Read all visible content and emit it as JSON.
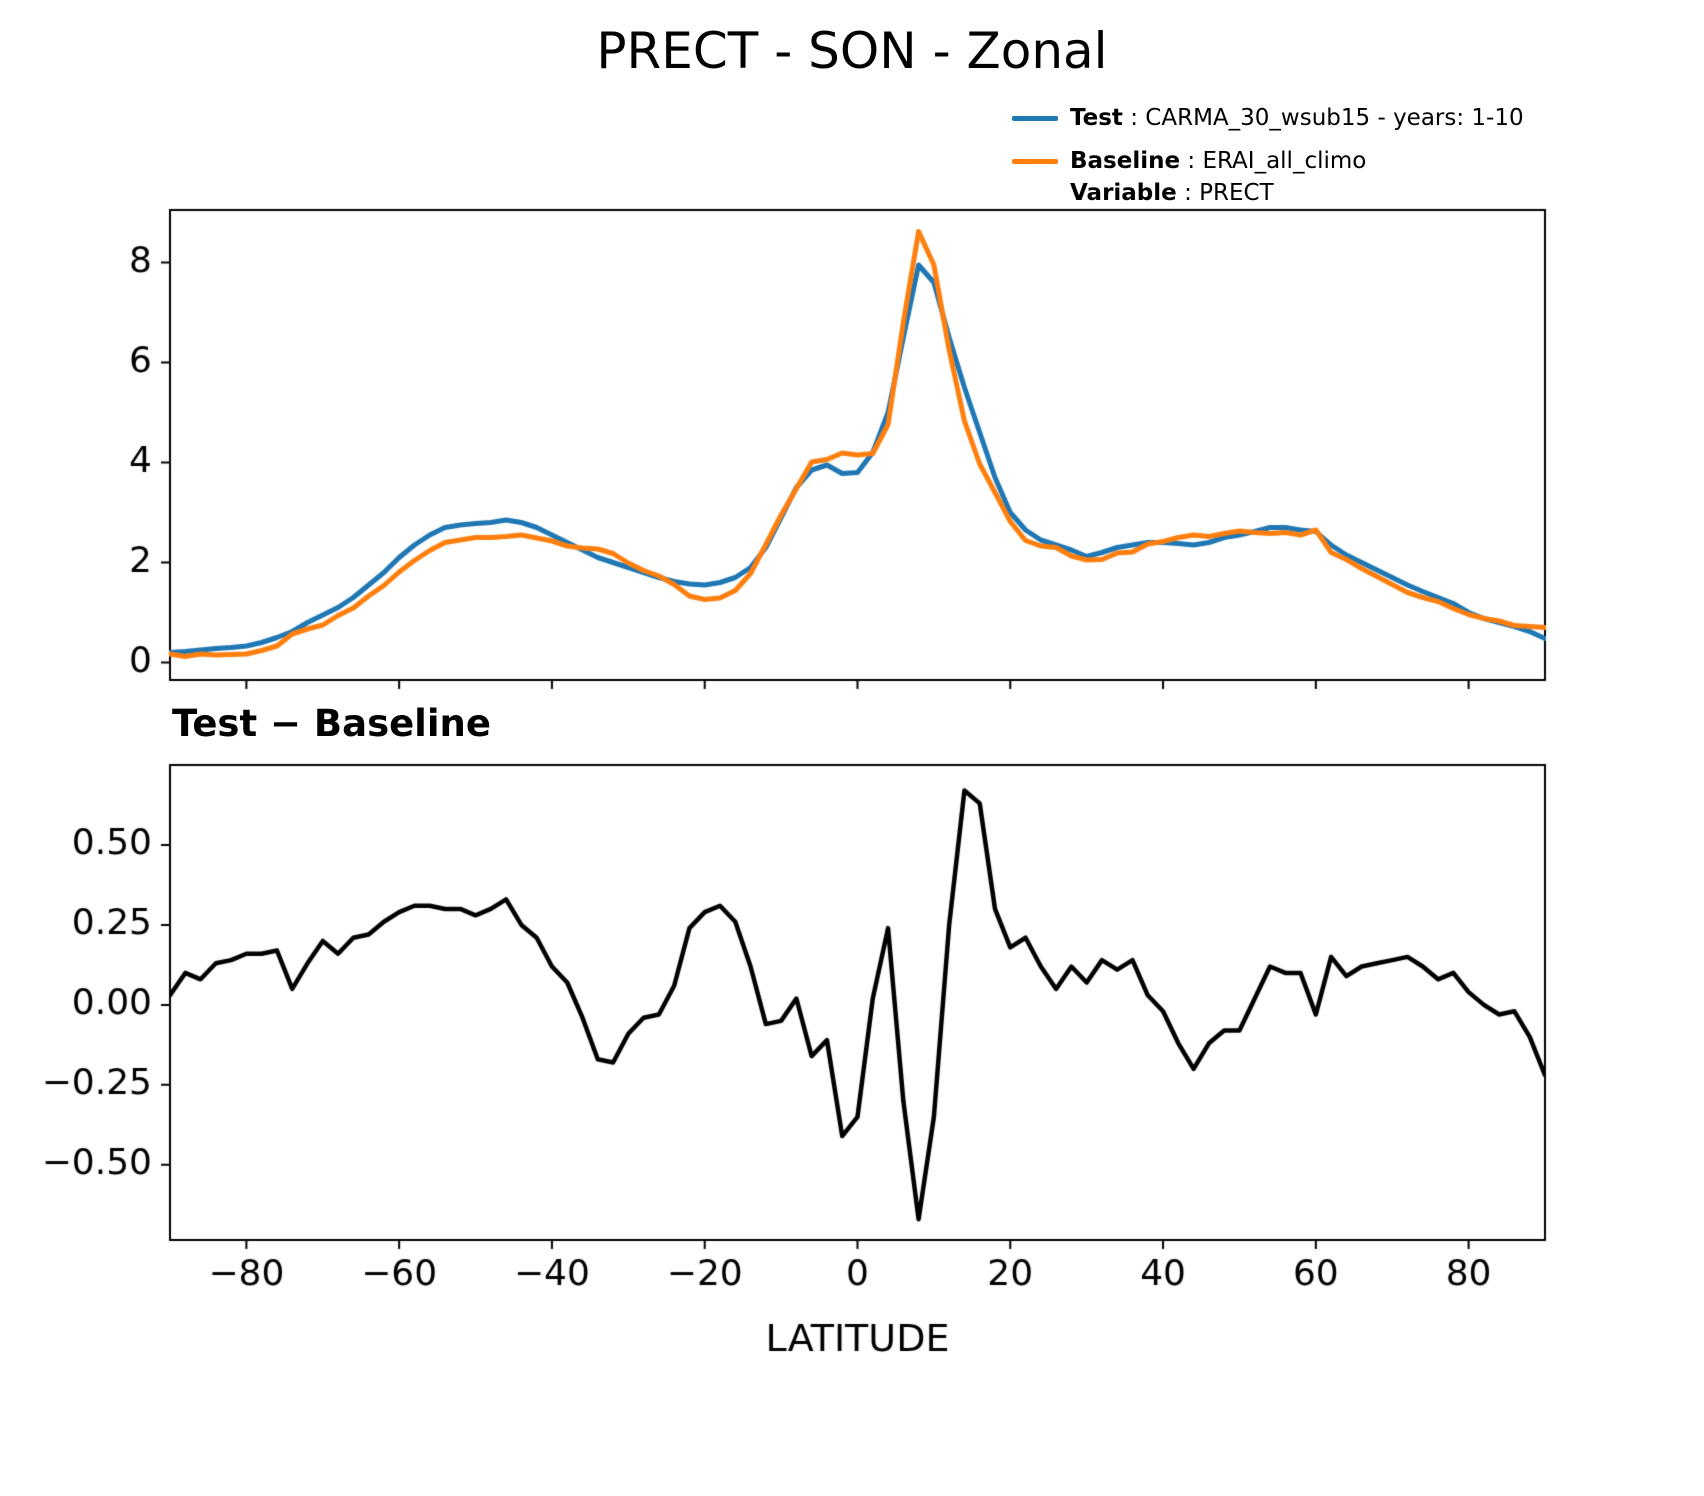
{
  "title": "PRECT - SON - Zonal",
  "colors": {
    "test": "#1f77b4",
    "baseline": "#ff7f0e",
    "diff": "#000000",
    "axis": "#000000"
  },
  "legend": {
    "test_label": "Test",
    "test_text": " : CARMA_30_wsub15 - years: 1-10",
    "baseline_label": "Baseline",
    "baseline_text": " : ERAI_all_climo",
    "variable_label": "Variable",
    "variable_text": " : PRECT"
  },
  "chart_data": [
    {
      "type": "line",
      "panel": "main",
      "title": "",
      "xlabel": "",
      "ylabel": "",
      "xlim": [
        -90,
        90
      ],
      "ylim": [
        -0.35,
        9.05
      ],
      "yticks": [
        0,
        2,
        4,
        6,
        8
      ],
      "xticks": [
        -80,
        -60,
        -40,
        -20,
        0,
        20,
        40,
        60,
        80
      ],
      "show_x_labels": false,
      "ytick_decimals": 0,
      "grid": false,
      "legend_position": "upper-right-outside",
      "x": [
        -90,
        -88,
        -86,
        -84,
        -82,
        -80,
        -78,
        -76,
        -74,
        -72,
        -70,
        -68,
        -66,
        -64,
        -62,
        -60,
        -58,
        -56,
        -54,
        -52,
        -50,
        -48,
        -46,
        -44,
        -42,
        -40,
        -38,
        -36,
        -34,
        -32,
        -30,
        -28,
        -26,
        -24,
        -22,
        -20,
        -18,
        -16,
        -14,
        -12,
        -10,
        -8,
        -6,
        -4,
        -2,
        0,
        2,
        4,
        6,
        8,
        10,
        12,
        14,
        16,
        18,
        20,
        22,
        24,
        26,
        28,
        30,
        32,
        34,
        36,
        38,
        40,
        42,
        44,
        46,
        48,
        50,
        52,
        54,
        56,
        58,
        60,
        62,
        64,
        66,
        68,
        70,
        72,
        74,
        76,
        78,
        80,
        82,
        84,
        86,
        88,
        90
      ],
      "series": [
        {
          "name": "Test",
          "color": "#1f77b4",
          "values": [
            0.2,
            0.22,
            0.25,
            0.28,
            0.3,
            0.33,
            0.4,
            0.5,
            0.62,
            0.8,
            0.95,
            1.1,
            1.3,
            1.55,
            1.8,
            2.1,
            2.35,
            2.55,
            2.7,
            2.75,
            2.78,
            2.8,
            2.85,
            2.8,
            2.7,
            2.55,
            2.4,
            2.25,
            2.1,
            2.0,
            1.9,
            1.8,
            1.7,
            1.62,
            1.57,
            1.55,
            1.6,
            1.7,
            1.9,
            2.3,
            2.9,
            3.5,
            3.85,
            3.95,
            3.78,
            3.8,
            4.2,
            5.0,
            6.5,
            7.95,
            7.6,
            6.5,
            5.5,
            4.6,
            3.7,
            3.0,
            2.65,
            2.45,
            2.35,
            2.25,
            2.12,
            2.2,
            2.3,
            2.35,
            2.4,
            2.4,
            2.38,
            2.35,
            2.4,
            2.5,
            2.55,
            2.62,
            2.7,
            2.7,
            2.65,
            2.62,
            2.35,
            2.15,
            2.0,
            1.85,
            1.7,
            1.55,
            1.42,
            1.3,
            1.18,
            1.0,
            0.88,
            0.8,
            0.72,
            0.62,
            0.48
          ]
        },
        {
          "name": "Baseline",
          "color": "#ff7f0e",
          "values": [
            0.17,
            0.12,
            0.17,
            0.15,
            0.16,
            0.17,
            0.24,
            0.33,
            0.57,
            0.67,
            0.75,
            0.94,
            1.09,
            1.33,
            1.54,
            1.81,
            2.04,
            2.24,
            2.4,
            2.45,
            2.5,
            2.5,
            2.52,
            2.55,
            2.49,
            2.43,
            2.33,
            2.29,
            2.27,
            2.18,
            1.99,
            1.84,
            1.73,
            1.56,
            1.33,
            1.26,
            1.29,
            1.44,
            1.78,
            2.36,
            2.95,
            3.48,
            4.01,
            4.06,
            4.19,
            4.15,
            4.18,
            4.76,
            6.8,
            8.62,
            7.95,
            6.25,
            4.83,
            3.97,
            3.4,
            2.82,
            2.44,
            2.33,
            2.3,
            2.13,
            2.05,
            2.06,
            2.19,
            2.21,
            2.37,
            2.42,
            2.5,
            2.55,
            2.52,
            2.58,
            2.63,
            2.6,
            2.58,
            2.6,
            2.55,
            2.65,
            2.2,
            2.06,
            1.88,
            1.72,
            1.56,
            1.4,
            1.3,
            1.22,
            1.08,
            0.96,
            0.88,
            0.83,
            0.74,
            0.72,
            0.7
          ]
        }
      ]
    },
    {
      "type": "line",
      "panel": "diff",
      "title": "Test − Baseline",
      "xlabel": "LATITUDE",
      "ylabel": "",
      "xlim": [
        -90,
        90
      ],
      "ylim": [
        -0.735,
        0.75
      ],
      "yticks": [
        0.5,
        0.25,
        0.0,
        -0.25,
        -0.5
      ],
      "xticks": [
        -80,
        -60,
        -40,
        -20,
        0,
        20,
        40,
        60,
        80
      ],
      "show_x_labels": true,
      "ytick_decimals": 2,
      "grid": false,
      "x": [
        -90,
        -88,
        -86,
        -84,
        -82,
        -80,
        -78,
        -76,
        -74,
        -72,
        -70,
        -68,
        -66,
        -64,
        -62,
        -60,
        -58,
        -56,
        -54,
        -52,
        -50,
        -48,
        -46,
        -44,
        -42,
        -40,
        -38,
        -36,
        -34,
        -32,
        -30,
        -28,
        -26,
        -24,
        -22,
        -20,
        -18,
        -16,
        -14,
        -12,
        -10,
        -8,
        -6,
        -4,
        -2,
        0,
        2,
        4,
        6,
        8,
        10,
        12,
        14,
        16,
        18,
        20,
        22,
        24,
        26,
        28,
        30,
        32,
        34,
        36,
        38,
        40,
        42,
        44,
        46,
        48,
        50,
        52,
        54,
        56,
        58,
        60,
        62,
        64,
        66,
        68,
        70,
        72,
        74,
        76,
        78,
        80,
        82,
        84,
        86,
        88,
        90
      ],
      "series": [
        {
          "name": "Test - Baseline",
          "color": "#000000",
          "values": [
            0.03,
            0.1,
            0.08,
            0.13,
            0.14,
            0.16,
            0.16,
            0.17,
            0.05,
            0.13,
            0.2,
            0.16,
            0.21,
            0.22,
            0.26,
            0.29,
            0.31,
            0.31,
            0.3,
            0.3,
            0.28,
            0.3,
            0.33,
            0.25,
            0.21,
            0.12,
            0.07,
            -0.04,
            -0.17,
            -0.18,
            -0.09,
            -0.04,
            -0.03,
            0.06,
            0.24,
            0.29,
            0.31,
            0.26,
            0.12,
            -0.06,
            -0.05,
            0.02,
            -0.16,
            -0.11,
            -0.41,
            -0.35,
            0.02,
            0.24,
            -0.3,
            -0.67,
            -0.35,
            0.25,
            0.67,
            0.63,
            0.3,
            0.18,
            0.21,
            0.12,
            0.05,
            0.12,
            0.07,
            0.14,
            0.11,
            0.14,
            0.03,
            -0.02,
            -0.12,
            -0.2,
            -0.12,
            -0.08,
            -0.08,
            0.02,
            0.12,
            0.1,
            0.1,
            -0.03,
            0.15,
            0.09,
            0.12,
            0.13,
            0.14,
            0.15,
            0.12,
            0.08,
            0.1,
            0.04,
            0.0,
            -0.03,
            -0.02,
            -0.1,
            -0.22
          ]
        }
      ]
    }
  ]
}
